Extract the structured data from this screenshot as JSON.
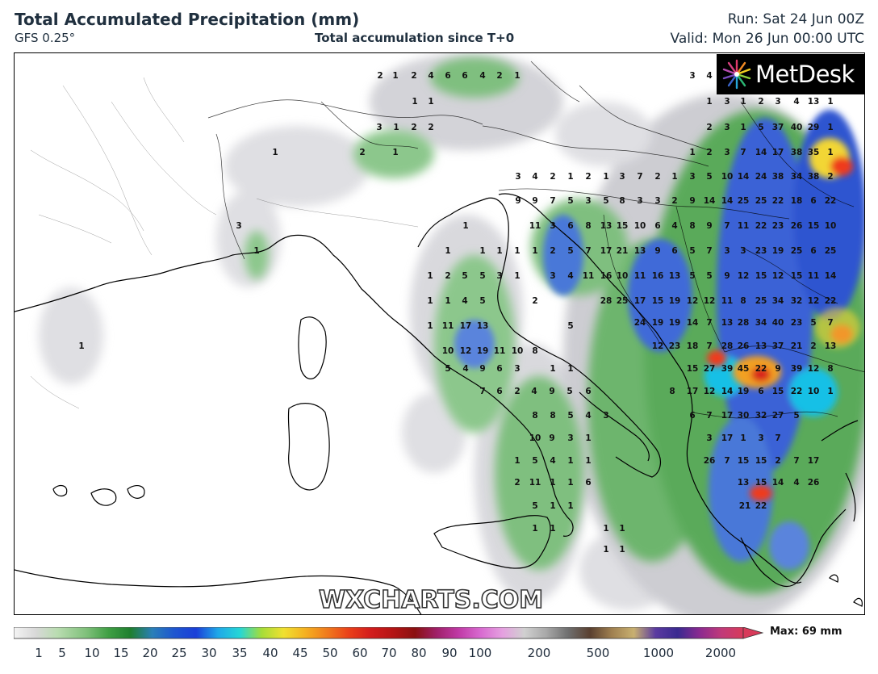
{
  "header": {
    "title": "Total Accumulated Precipitation (mm)",
    "model": "GFS 0.25°",
    "subtitle": "Total accumulation since T+0",
    "run": "Run: Sat 24 Jun 00Z",
    "valid": "Valid: Mon 26 Jun 00:00 UTC"
  },
  "logo": {
    "text": "MetDesk"
  },
  "watermark": "WXCHARTS.COM",
  "colorbar": {
    "max_label": "Max: 69 mm",
    "ticks": [
      "1",
      "5",
      "10",
      "15",
      "20",
      "25",
      "30",
      "35",
      "40",
      "45",
      "50",
      "60",
      "70",
      "80",
      "90",
      "100",
      "200",
      "500",
      "1000",
      "2000"
    ]
  },
  "map_values": [
    {
      "group": "alps",
      "values": [
        "2",
        "1",
        "2",
        "4",
        "6",
        "6",
        "4",
        "2",
        "1",
        "1",
        "1",
        "3",
        "1",
        "2",
        "2",
        "2",
        "1",
        "1",
        "3",
        "1"
      ]
    },
    {
      "group": "italy",
      "values": [
        "1",
        "1",
        "1",
        "1",
        "1",
        "1",
        "1",
        "2",
        "5",
        "5",
        "3",
        "1",
        "1",
        "1",
        "4",
        "5",
        "1",
        "1",
        "11",
        "17",
        "13",
        "10",
        "12",
        "19",
        "11",
        "10",
        "5",
        "4",
        "9",
        "6",
        "3",
        "7",
        "6",
        "2",
        "4",
        "9",
        "5",
        "6",
        "8",
        "8",
        "5",
        "4",
        "3",
        "10",
        "9",
        "3",
        "1",
        "1",
        "5",
        "4",
        "1",
        "1",
        "2",
        "11",
        "1",
        "1",
        "6",
        "5",
        "1",
        "1",
        "1",
        "1",
        "2",
        "5",
        "8",
        "1",
        "1",
        "1",
        "1",
        "1",
        "1"
      ]
    },
    {
      "group": "balkans",
      "values": [
        "3",
        "4",
        "1",
        "3",
        "1",
        "2",
        "3",
        "4",
        "13",
        "1",
        "2",
        "3",
        "1",
        "5",
        "37",
        "40",
        "29",
        "1",
        "1",
        "2",
        "3",
        "7",
        "14",
        "17",
        "38",
        "35",
        "1",
        "3",
        "4",
        "2",
        "1",
        "2",
        "1",
        "3",
        "7",
        "2",
        "1",
        "3",
        "5",
        "10",
        "14",
        "24",
        "38",
        "34",
        "38",
        "2",
        "9",
        "9",
        "7",
        "5",
        "3",
        "5",
        "8",
        "3",
        "3",
        "2",
        "9",
        "14",
        "14",
        "25",
        "25",
        "22",
        "18",
        "6",
        "22",
        "11",
        "3",
        "6",
        "8",
        "13",
        "15",
        "10",
        "6",
        "4",
        "8",
        "9",
        "7",
        "11",
        "22",
        "23",
        "26",
        "15",
        "10",
        "2",
        "5",
        "7",
        "17",
        "21",
        "13",
        "9",
        "6",
        "5",
        "7",
        "3",
        "3",
        "23",
        "19",
        "25",
        "6",
        "25",
        "3",
        "4",
        "11",
        "16",
        "10",
        "11",
        "16",
        "13",
        "5",
        "5",
        "9",
        "12",
        "15",
        "12",
        "15",
        "11",
        "14",
        "28",
        "25",
        "17",
        "15",
        "19",
        "12",
        "12",
        "11",
        "8",
        "25",
        "34",
        "32",
        "12",
        "22",
        "24",
        "19",
        "19",
        "14",
        "7",
        "13",
        "28",
        "34",
        "40",
        "23",
        "5",
        "7",
        "12",
        "23",
        "18",
        "7",
        "28",
        "26",
        "13",
        "37",
        "21",
        "2",
        "13",
        "15",
        "27",
        "39",
        "45",
        "22",
        "9",
        "39",
        "12",
        "8",
        "8",
        "17",
        "12",
        "14",
        "19",
        "6",
        "15",
        "22",
        "10",
        "1",
        "6",
        "7",
        "17",
        "30",
        "32",
        "27",
        "5",
        "3",
        "17",
        "1",
        "3",
        "7",
        "26",
        "7",
        "15",
        "15",
        "2",
        "7",
        "17",
        "13",
        "15",
        "14",
        "4",
        "26",
        "21",
        "22",
        "12",
        "8",
        "11",
        "9",
        "4",
        "14",
        "26",
        "1",
        "6",
        "17",
        "4"
      ]
    }
  ]
}
